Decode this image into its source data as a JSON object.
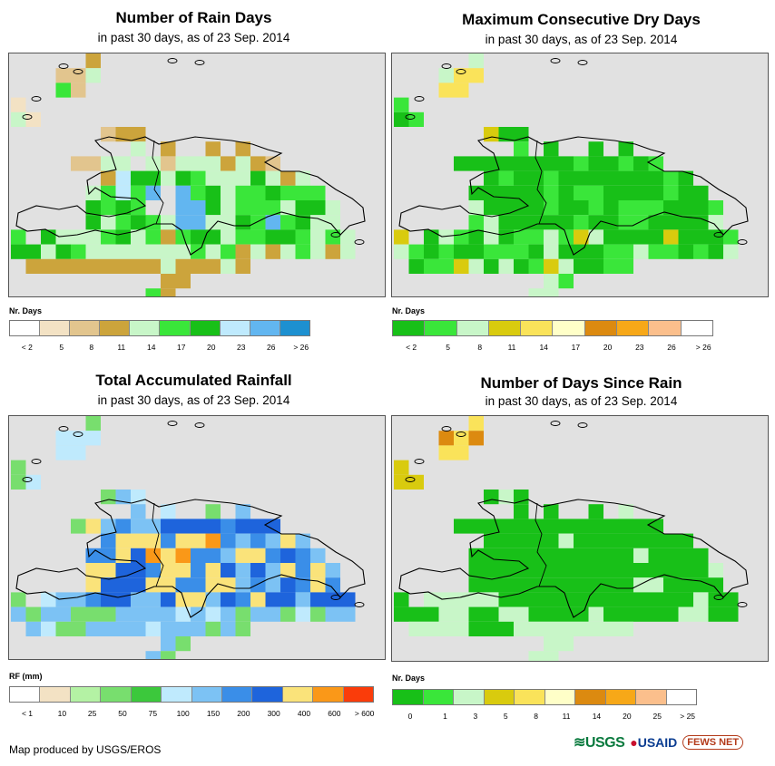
{
  "panels": [
    {
      "title": "Number of Rain Days",
      "subtitle": "in past 30 days, as of 23 Sep. 2014",
      "legend_title": "Nr. Days",
      "legend_colors": [
        "#ffffff",
        "#f3e2c4",
        "#e2c58e",
        "#cca43c",
        "#c8f6c8",
        "#3ae63a",
        "#18c018",
        "#bfeafd",
        "#62b6f0",
        "#1d90d0"
      ],
      "legend_labels": [
        "< 2",
        "5",
        "8",
        "11",
        "14",
        "17",
        "20",
        "23",
        "26",
        "> 26"
      ]
    },
    {
      "title": "Maximum Consecutive Dry Days",
      "subtitle": "in past 30 days, as of 23 Sep. 2014",
      "legend_title": "Nr. Days",
      "legend_colors": [
        "#18c018",
        "#3ae63a",
        "#c8f6c8",
        "#d9cb0e",
        "#fae35a",
        "#ffffc8",
        "#dc8a10",
        "#f7a818",
        "#fbbf8c",
        "#ffffff"
      ],
      "legend_labels": [
        "< 2",
        "5",
        "8",
        "11",
        "14",
        "17",
        "20",
        "23",
        "26",
        "> 26"
      ]
    },
    {
      "title": "Total Accumulated Rainfall",
      "subtitle": "in past 30 days, as of 23 Sep. 2014",
      "legend_title": "RF (mm)",
      "legend_colors": [
        "#ffffff",
        "#f3e2c4",
        "#b4f2a4",
        "#78de6e",
        "#3cc83c",
        "#bfeafd",
        "#7cc2f4",
        "#3a8ee8",
        "#1e64dc",
        "#fae37a",
        "#fa9818",
        "#fa3c0a"
      ],
      "legend_labels": [
        "< 1",
        "10",
        "25",
        "50",
        "75",
        "100",
        "150",
        "200",
        "300",
        "400",
        "600",
        "> 600"
      ]
    },
    {
      "title": "Number of Days Since Rain",
      "subtitle": "in past 30 days, as of 23 Sep. 2014",
      "legend_title": "Nr. Days",
      "legend_colors": [
        "#18c018",
        "#3ae63a",
        "#c8f6c8",
        "#d9cb0e",
        "#fae35a",
        "#ffffc8",
        "#dc8a10",
        "#f7a818",
        "#fbbf8c",
        "#ffffff"
      ],
      "legend_labels": [
        "0",
        "1",
        "3",
        "5",
        "8",
        "11",
        "14",
        "20",
        "25",
        "> 25"
      ]
    }
  ],
  "footer": {
    "credit": "Map produced by USGS/EROS",
    "logo_usgs": "USGS",
    "logo_usaid": "USAID",
    "logo_fews": "FEWS NET"
  },
  "grid_values": {
    "rain_days": [
      [
        "",
        "",
        "",
        "",
        "",
        "11",
        "",
        "",
        "",
        "",
        "",
        "",
        "",
        "",
        "",
        "",
        "",
        "",
        "",
        "",
        "",
        "",
        "",
        "",
        ""
      ],
      [
        "",
        "",
        "",
        "8",
        "8",
        "14",
        "",
        "",
        "",
        "",
        "",
        "",
        "",
        "",
        "",
        "",
        "",
        "",
        "",
        "",
        "",
        "",
        "",
        "",
        ""
      ],
      [
        "",
        "",
        "",
        "17",
        "8",
        "",
        "",
        "",
        "",
        "",
        "",
        "",
        "",
        "",
        "",
        "",
        "",
        "",
        "",
        "",
        "",
        "",
        "",
        "",
        ""
      ],
      [
        "5",
        "",
        "",
        "",
        "",
        "",
        "",
        "",
        "",
        "",
        "",
        "",
        "",
        "",
        "",
        "",
        "",
        "",
        "",
        "",
        "",
        "",
        "",
        "",
        ""
      ],
      [
        "14",
        "5",
        "",
        "",
        "",
        "",
        "",
        "",
        "",
        "",
        "",
        "",
        "",
        "",
        "",
        "",
        "",
        "",
        "",
        "",
        "",
        "",
        "",
        "",
        ""
      ],
      [
        "",
        "",
        "",
        "",
        "",
        "",
        "8",
        "11",
        "11",
        "",
        "",
        "",
        "",
        "",
        "",
        "",
        "",
        "",
        "",
        "",
        "",
        "",
        "",
        "",
        ""
      ],
      [
        "",
        "",
        "",
        "",
        "",
        "",
        "",
        "",
        "14",
        "",
        "11",
        "",
        "",
        "11",
        "",
        "11",
        "",
        "",
        "",
        "",
        "",
        "",
        "",
        "",
        ""
      ],
      [
        "",
        "",
        "",
        "",
        "8",
        "8",
        "14",
        "14",
        "",
        "14",
        "8",
        "14",
        "14",
        "14",
        "11",
        "14",
        "11",
        "8",
        "",
        "",
        "",
        "",
        "",
        "",
        ""
      ],
      [
        "",
        "",
        "",
        "",
        "",
        "",
        "11",
        "23",
        "20",
        "20",
        "14",
        "20",
        "17",
        "14",
        "14",
        "14",
        "20",
        "14",
        "11",
        "14",
        "",
        "",
        "",
        "",
        ""
      ],
      [
        "",
        "",
        "",
        "",
        "",
        "14",
        "17",
        "23",
        "17",
        "26",
        ">26",
        "26",
        "17",
        "20",
        "14",
        "17",
        "17",
        "20",
        "17",
        "17",
        "17",
        "",
        "",
        "",
        ""
      ],
      [
        "",
        "",
        "",
        "",
        "",
        "20",
        "17",
        "20",
        "17",
        ">26",
        ">26",
        "26",
        "26",
        "20",
        "14",
        "17",
        "17",
        "17",
        "14",
        "20",
        "20",
        "14",
        "",
        "",
        ""
      ],
      [
        "",
        "",
        "",
        "",
        "",
        "20",
        "14",
        "17",
        "20",
        "17",
        "14",
        "26",
        "26",
        "14",
        "14",
        "20",
        "17",
        "26",
        "17",
        "20",
        "14",
        "14",
        "",
        "",
        ""
      ],
      [
        "17",
        "",
        "20",
        "14",
        "14",
        "14",
        "17",
        "20",
        "14",
        "17",
        "11",
        "17",
        "20",
        "20",
        "14",
        "17",
        "17",
        "20",
        "20",
        "17",
        "14",
        "17",
        "14",
        "",
        ""
      ],
      [
        "20",
        "20",
        "14",
        "20",
        "17",
        "14",
        "14",
        "14",
        "14",
        "14",
        "14",
        "14",
        "17",
        "14",
        "17",
        "11",
        "14",
        "11",
        "14",
        "17",
        "14",
        "11",
        "14",
        "",
        ""
      ],
      [
        "",
        "11",
        "11",
        "11",
        "11",
        "11",
        "11",
        "11",
        "11",
        "11",
        "14",
        "11",
        "11",
        "11",
        "14",
        "11",
        "",
        "",
        "",
        "",
        "",
        "",
        "",
        "",
        ""
      ],
      [
        "",
        "",
        "",
        "",
        "",
        "",
        "",
        "",
        "",
        "",
        "11",
        "11",
        "",
        "",
        "",
        "",
        "",
        "",
        "",
        "",
        "",
        "",
        "",
        "",
        ""
      ],
      [
        "",
        "",
        "",
        "",
        "",
        "",
        "",
        "",
        "",
        "17",
        "11",
        "",
        "",
        "",
        "",
        "",
        "",
        "",
        "",
        "",
        "",
        "",
        "",
        "",
        ""
      ]
    ]
  }
}
